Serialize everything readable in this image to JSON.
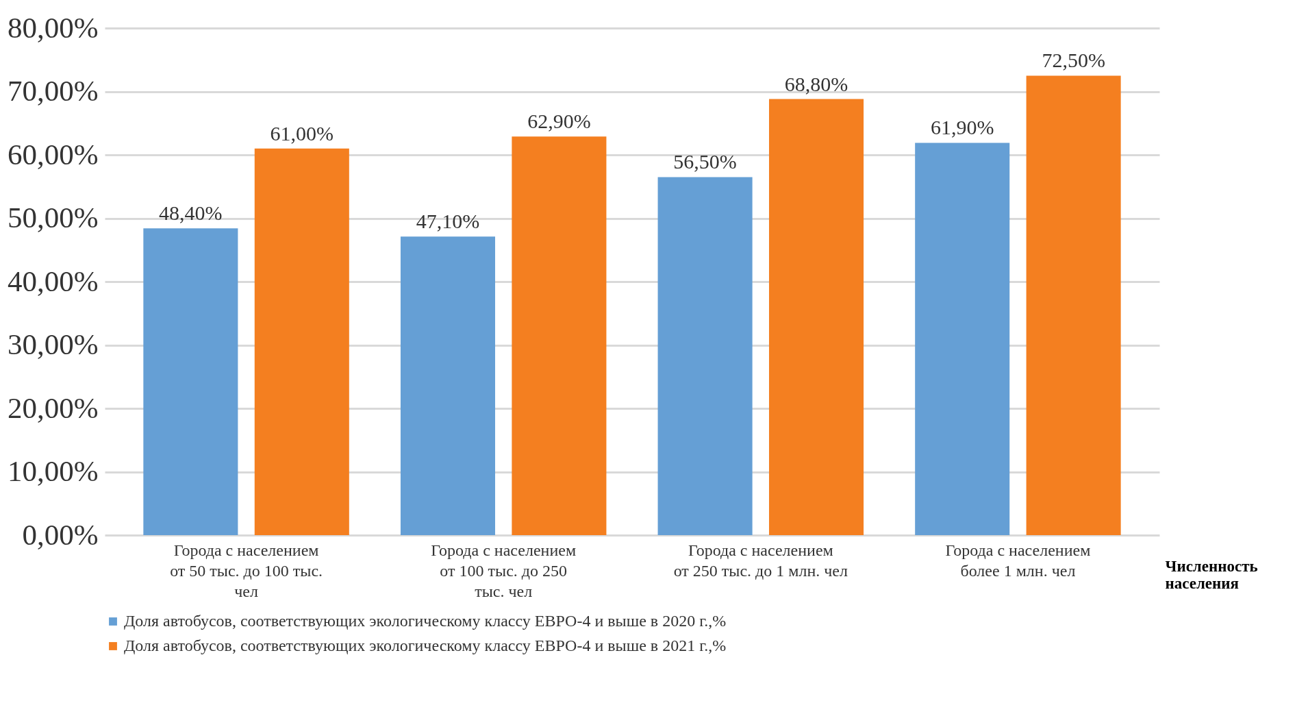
{
  "chart_data": {
    "type": "bar",
    "categories": [
      "Города с населением\nот 50 тыс. до 100 тыс.\nчел",
      "Города с населением\nот 100 тыс. до 250\nтыс. чел",
      "Города с населением\nот 250 тыс. до 1 млн. чел",
      "Города с населением\nболее 1 млн. чел"
    ],
    "xlabel": "Численность\nнаселения",
    "series": [
      {
        "name": "Доля автобусов, соответствующих экологическому классу ЕВРО-4 и выше в 2020 г.,%",
        "color": "#659fd5",
        "values": [
          48.4,
          47.1,
          56.5,
          61.9
        ],
        "value_labels": [
          "48,40%",
          "47,10%",
          "56,50%",
          "61,90%"
        ]
      },
      {
        "name": "Доля автобусов, соответствующих экологическому классу ЕВРО-4 и выше в 2021 г.,%",
        "color": "#f47f20",
        "values": [
          61.0,
          62.9,
          68.8,
          72.5
        ],
        "value_labels": [
          "61,00%",
          "62,90%",
          "68,80%",
          "72,50%"
        ]
      }
    ],
    "ylim": [
      0,
      80
    ],
    "yticks": [
      {
        "value": 0,
        "label": "0,00%"
      },
      {
        "value": 10,
        "label": "10,00%"
      },
      {
        "value": 20,
        "label": "20,00%"
      },
      {
        "value": 30,
        "label": "30,00%"
      },
      {
        "value": 40,
        "label": "40,00%"
      },
      {
        "value": 50,
        "label": "50,00%"
      },
      {
        "value": 60,
        "label": "60,00%"
      },
      {
        "value": 70,
        "label": "70,00%"
      },
      {
        "value": 80,
        "label": "80,00%"
      }
    ],
    "grid": "y",
    "legend": "bottom"
  }
}
